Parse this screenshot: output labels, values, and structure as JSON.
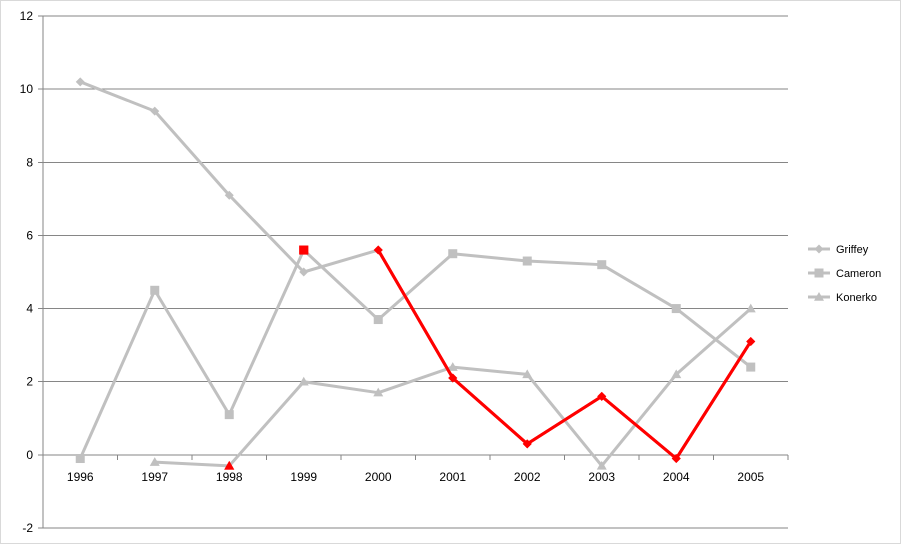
{
  "chart_data": {
    "type": "line",
    "categories": [
      "1996",
      "1997",
      "1998",
      "1999",
      "2000",
      "2001",
      "2002",
      "2003",
      "2004",
      "2005"
    ],
    "ylim": [
      -2,
      12
    ],
    "yticks": [
      -2,
      0,
      2,
      4,
      6,
      8,
      10,
      12
    ],
    "grid": true,
    "legend_position": "right",
    "highlight_color": "#ff0000",
    "series": [
      {
        "name": "Griffey",
        "marker": "diamond",
        "color": "#c0c0c0",
        "values": [
          10.2,
          9.4,
          7.1,
          5.0,
          5.6,
          2.1,
          0.3,
          1.6,
          -0.1,
          3.1
        ],
        "highlight_from_index": 4
      },
      {
        "name": "Cameron",
        "marker": "square",
        "color": "#c0c0c0",
        "values": [
          -0.1,
          4.5,
          1.1,
          5.6,
          3.7,
          5.5,
          5.3,
          5.2,
          4.0,
          2.4
        ],
        "highlight_points": [
          3
        ]
      },
      {
        "name": "Konerko",
        "marker": "triangle",
        "color": "#c0c0c0",
        "values": [
          null,
          -0.2,
          -0.3,
          2.0,
          1.7,
          2.4,
          2.2,
          -0.3,
          2.2,
          4.0
        ],
        "highlight_points": [
          2
        ]
      }
    ]
  }
}
